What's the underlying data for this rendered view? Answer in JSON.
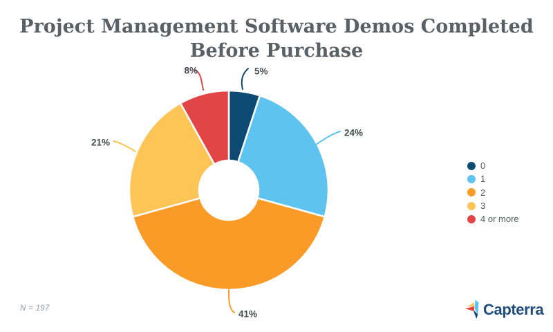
{
  "title_lines": [
    "Project Management Software Demos Completed",
    "Before Purchase"
  ],
  "footnote": "N = 197",
  "logo": {
    "text": "Capterra",
    "wordmark_color": "#1F4E7C"
  },
  "chart_data": {
    "type": "pie",
    "subtype": "donut",
    "title": "Project Management Software Demos Completed Before Purchase",
    "sample_size_note": "N = 197",
    "legend_position": "right",
    "unit": "percent",
    "categories": [
      "0",
      "1",
      "2",
      "3",
      "4 or more"
    ],
    "values": [
      5,
      24,
      41,
      21,
      8
    ],
    "segments": [
      {
        "label": "0",
        "value": 5,
        "pct_label": "5%",
        "color": "#0D4A73"
      },
      {
        "label": "1",
        "value": 24,
        "pct_label": "24%",
        "color": "#5EC3EF"
      },
      {
        "label": "2",
        "value": 41,
        "pct_label": "41%",
        "color": "#FB9B27"
      },
      {
        "label": "3",
        "value": 21,
        "pct_label": "21%",
        "color": "#FEC455"
      },
      {
        "label": "4 or more",
        "value": 8,
        "pct_label": "8%",
        "color": "#E24545"
      }
    ]
  }
}
